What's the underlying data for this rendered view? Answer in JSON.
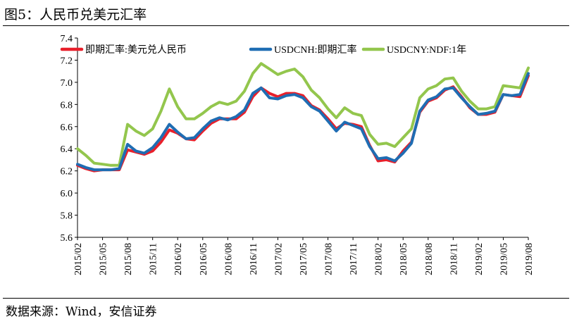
{
  "figure": {
    "title": "图5：人民币兑美元汇率",
    "source": "数据来源：Wind，安信证券"
  },
  "chart_data": {
    "type": "line",
    "title": "",
    "xlabel": "",
    "ylabel": "",
    "ylim": [
      5.6,
      7.4
    ],
    "yticks": [
      "7.4",
      "7.2",
      "7.0",
      "6.8",
      "6.6",
      "6.4",
      "6.2",
      "6.0",
      "5.8",
      "5.6"
    ],
    "xticks": [
      "2015/02",
      "2015/05",
      "2015/08",
      "2015/11",
      "2016/02",
      "2016/05",
      "2016/08",
      "2016/11",
      "2017/02",
      "2017/05",
      "2017/08",
      "2017/11",
      "2018/02",
      "2018/05",
      "2018/08",
      "2018/11",
      "2019/02",
      "2019/05",
      "2019/08"
    ],
    "grid": false,
    "legend": "top",
    "series": [
      {
        "name": "即期汇率:美元兑人民币",
        "color": "#e8202b",
        "x": [
          "2015/02",
          "2015/03",
          "2015/04",
          "2015/05",
          "2015/06",
          "2015/07",
          "2015/08",
          "2015/09",
          "2015/10",
          "2015/11",
          "2015/12",
          "2016/01",
          "2016/02",
          "2016/03",
          "2016/04",
          "2016/05",
          "2016/06",
          "2016/07",
          "2016/08",
          "2016/09",
          "2016/10",
          "2016/11",
          "2016/12",
          "2017/01",
          "2017/02",
          "2017/03",
          "2017/04",
          "2017/05",
          "2017/06",
          "2017/07",
          "2017/08",
          "2017/09",
          "2017/10",
          "2017/11",
          "2017/12",
          "2018/01",
          "2018/02",
          "2018/03",
          "2018/04",
          "2018/05",
          "2018/06",
          "2018/07",
          "2018/08",
          "2018/09",
          "2018/10",
          "2018/11",
          "2018/12",
          "2019/01",
          "2019/02",
          "2019/03",
          "2019/04",
          "2019/05",
          "2019/06",
          "2019/07",
          "2019/08"
        ],
        "values": [
          6.25,
          6.22,
          6.2,
          6.21,
          6.21,
          6.21,
          6.39,
          6.37,
          6.35,
          6.38,
          6.46,
          6.57,
          6.54,
          6.49,
          6.48,
          6.56,
          6.63,
          6.67,
          6.67,
          6.67,
          6.73,
          6.87,
          6.95,
          6.9,
          6.87,
          6.9,
          6.9,
          6.88,
          6.79,
          6.75,
          6.67,
          6.58,
          6.63,
          6.62,
          6.6,
          6.43,
          6.29,
          6.3,
          6.28,
          6.38,
          6.46,
          6.73,
          6.83,
          6.86,
          6.93,
          6.96,
          6.87,
          6.77,
          6.71,
          6.71,
          6.73,
          6.89,
          6.88,
          6.87,
          7.06
        ]
      },
      {
        "name": "USDCNH:即期汇率",
        "color": "#1f6db3",
        "x": [
          "2015/02",
          "2015/03",
          "2015/04",
          "2015/05",
          "2015/06",
          "2015/07",
          "2015/08",
          "2015/09",
          "2015/10",
          "2015/11",
          "2015/12",
          "2016/01",
          "2016/02",
          "2016/03",
          "2016/04",
          "2016/05",
          "2016/06",
          "2016/07",
          "2016/08",
          "2016/09",
          "2016/10",
          "2016/11",
          "2016/12",
          "2017/01",
          "2017/02",
          "2017/03",
          "2017/04",
          "2017/05",
          "2017/06",
          "2017/07",
          "2017/08",
          "2017/09",
          "2017/10",
          "2017/11",
          "2017/12",
          "2018/01",
          "2018/02",
          "2018/03",
          "2018/04",
          "2018/05",
          "2018/06",
          "2018/07",
          "2018/08",
          "2018/09",
          "2018/10",
          "2018/11",
          "2018/12",
          "2019/01",
          "2019/02",
          "2019/03",
          "2019/04",
          "2019/05",
          "2019/06",
          "2019/07",
          "2019/08"
        ],
        "values": [
          6.26,
          6.23,
          6.21,
          6.21,
          6.21,
          6.22,
          6.44,
          6.38,
          6.36,
          6.41,
          6.5,
          6.62,
          6.55,
          6.49,
          6.5,
          6.58,
          6.65,
          6.68,
          6.66,
          6.69,
          6.75,
          6.9,
          6.95,
          6.86,
          6.85,
          6.88,
          6.89,
          6.86,
          6.78,
          6.74,
          6.65,
          6.56,
          6.64,
          6.61,
          6.58,
          6.42,
          6.31,
          6.32,
          6.29,
          6.36,
          6.45,
          6.74,
          6.84,
          6.87,
          6.94,
          6.95,
          6.86,
          6.78,
          6.71,
          6.72,
          6.74,
          6.89,
          6.88,
          6.89,
          7.08
        ]
      },
      {
        "name": "USDCNY:NDF:1年",
        "color": "#93c64d",
        "x": [
          "2015/02",
          "2015/03",
          "2015/04",
          "2015/05",
          "2015/06",
          "2015/07",
          "2015/08",
          "2015/09",
          "2015/10",
          "2015/11",
          "2015/12",
          "2016/01",
          "2016/02",
          "2016/03",
          "2016/04",
          "2016/05",
          "2016/06",
          "2016/07",
          "2016/08",
          "2016/09",
          "2016/10",
          "2016/11",
          "2016/12",
          "2017/01",
          "2017/02",
          "2017/03",
          "2017/04",
          "2017/05",
          "2017/06",
          "2017/07",
          "2017/08",
          "2017/09",
          "2017/10",
          "2017/11",
          "2017/12",
          "2018/01",
          "2018/02",
          "2018/03",
          "2018/04",
          "2018/05",
          "2018/06",
          "2018/07",
          "2018/08",
          "2018/09",
          "2018/10",
          "2018/11",
          "2018/12",
          "2019/01",
          "2019/02",
          "2019/03",
          "2019/04",
          "2019/05",
          "2019/06",
          "2019/07",
          "2019/08"
        ],
        "values": [
          6.4,
          6.34,
          6.27,
          6.26,
          6.25,
          6.25,
          6.62,
          6.56,
          6.52,
          6.58,
          6.74,
          6.94,
          6.78,
          6.67,
          6.67,
          6.72,
          6.78,
          6.82,
          6.8,
          6.83,
          6.92,
          7.08,
          7.17,
          7.12,
          7.07,
          7.1,
          7.12,
          7.05,
          6.93,
          6.86,
          6.76,
          6.68,
          6.77,
          6.72,
          6.7,
          6.53,
          6.44,
          6.45,
          6.42,
          6.5,
          6.58,
          6.86,
          6.94,
          6.97,
          7.03,
          7.04,
          6.92,
          6.83,
          6.76,
          6.76,
          6.78,
          6.97,
          6.96,
          6.95,
          7.13
        ]
      }
    ]
  }
}
